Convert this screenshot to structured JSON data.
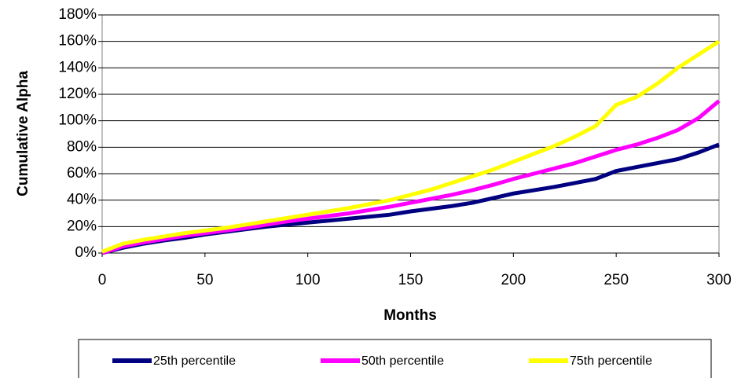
{
  "chart_data": {
    "type": "line",
    "x_label": "Months",
    "y_label": "Cumulative Alpha",
    "x": [
      0,
      10,
      20,
      30,
      40,
      50,
      60,
      70,
      80,
      90,
      100,
      110,
      120,
      130,
      140,
      150,
      160,
      170,
      180,
      190,
      200,
      210,
      220,
      230,
      240,
      250,
      260,
      270,
      280,
      290,
      300
    ],
    "series": [
      {
        "name": "25th percentile",
        "color": "#000080",
        "values": [
          0,
          4,
          7,
          9.5,
          11.5,
          14,
          16,
          18,
          20,
          21.5,
          23,
          24.5,
          26,
          27.5,
          29,
          31.5,
          33.5,
          35.5,
          38,
          41.5,
          45,
          47.5,
          50,
          53,
          56,
          62,
          65,
          68,
          71,
          76,
          82
        ]
      },
      {
        "name": "50th percentile",
        "color": "#ff00ff",
        "values": [
          0,
          5,
          8,
          10.5,
          13,
          15,
          17,
          19,
          21.5,
          24,
          26,
          28,
          30,
          32.5,
          35,
          38,
          41,
          44,
          47.5,
          51.5,
          56,
          60,
          64,
          68,
          73,
          78,
          82,
          87,
          93,
          102,
          115
        ]
      },
      {
        "name": "75th percentile",
        "color": "#ffff00",
        "values": [
          1,
          7,
          10,
          12.5,
          15,
          17,
          19,
          21.5,
          24,
          26.5,
          29,
          31.5,
          34,
          37,
          40,
          44,
          48,
          53,
          58,
          63,
          69,
          75,
          81,
          88,
          96,
          112,
          118,
          128,
          140,
          150,
          160
        ]
      }
    ],
    "xlim": [
      0,
      300
    ],
    "xticks": [
      0,
      50,
      100,
      150,
      200,
      250,
      300
    ],
    "ylim": [
      0,
      180
    ],
    "yticks": [
      {
        "value": 0,
        "label": "0%"
      },
      {
        "value": 20,
        "label": "20%"
      },
      {
        "value": 40,
        "label": "40%"
      },
      {
        "value": 60,
        "label": "60%"
      },
      {
        "value": 80,
        "label": "80%"
      },
      {
        "value": 100,
        "label": "100%"
      },
      {
        "value": 120,
        "label": "120%"
      },
      {
        "value": 140,
        "label": "140%"
      },
      {
        "value": 160,
        "label": "160%"
      },
      {
        "value": 180,
        "label": "180%"
      }
    ],
    "grid": true,
    "legend": "bottom"
  }
}
